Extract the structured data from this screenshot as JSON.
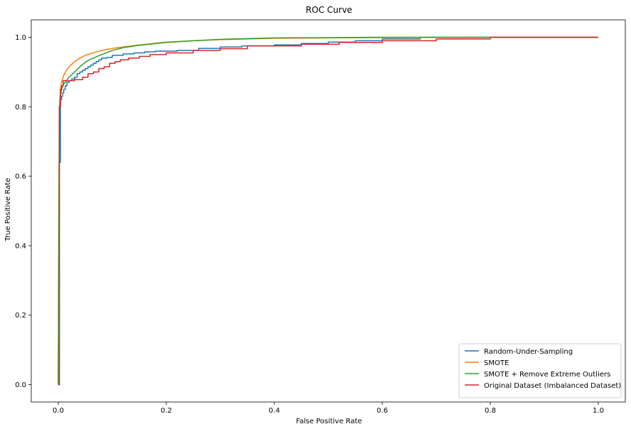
{
  "chart_data": {
    "type": "line",
    "title": "ROC Curve",
    "xlabel": "False Positive Rate",
    "ylabel": "True Positive Rate",
    "xlim": [
      -0.05,
      1.05
    ],
    "ylim": [
      -0.05,
      1.05
    ],
    "xticks": [
      0.0,
      0.2,
      0.4,
      0.6,
      0.8,
      1.0
    ],
    "yticks": [
      0.0,
      0.2,
      0.4,
      0.6,
      0.8,
      1.0
    ],
    "xtick_labels": [
      "0.0",
      "0.2",
      "0.4",
      "0.6",
      "0.8",
      "1.0"
    ],
    "ytick_labels": [
      "0.0",
      "0.2",
      "0.4",
      "0.6",
      "0.8",
      "1.0"
    ],
    "grid": false,
    "legend_position": "lower-right",
    "series": [
      {
        "name": "Random-Under-Sampling",
        "color": "#1f77b4",
        "step": true,
        "x": [
          0.0,
          0.002,
          0.002,
          0.004,
          0.004,
          0.006,
          0.006,
          0.008,
          0.008,
          0.01,
          0.01,
          0.013,
          0.013,
          0.016,
          0.016,
          0.02,
          0.02,
          0.025,
          0.025,
          0.03,
          0.03,
          0.035,
          0.035,
          0.04,
          0.04,
          0.045,
          0.045,
          0.05,
          0.05,
          0.055,
          0.055,
          0.06,
          0.06,
          0.065,
          0.065,
          0.07,
          0.07,
          0.075,
          0.075,
          0.08,
          0.08,
          0.09,
          0.09,
          0.1,
          0.1,
          0.12,
          0.12,
          0.14,
          0.14,
          0.16,
          0.16,
          0.18,
          0.18,
          0.22,
          0.22,
          0.26,
          0.26,
          0.3,
          0.3,
          0.34,
          0.34,
          0.4,
          0.4,
          0.45,
          0.45,
          0.5,
          0.5,
          0.55,
          0.55,
          0.6,
          0.6,
          0.67,
          0.67,
          0.9,
          0.9,
          1.0
        ],
        "y": [
          0.0,
          0.0,
          0.64,
          0.64,
          0.82,
          0.82,
          0.83,
          0.83,
          0.84,
          0.84,
          0.85,
          0.85,
          0.86,
          0.86,
          0.87,
          0.87,
          0.875,
          0.875,
          0.88,
          0.88,
          0.885,
          0.885,
          0.895,
          0.895,
          0.9,
          0.9,
          0.905,
          0.905,
          0.91,
          0.91,
          0.915,
          0.915,
          0.92,
          0.92,
          0.925,
          0.925,
          0.93,
          0.93,
          0.935,
          0.935,
          0.94,
          0.94,
          0.942,
          0.942,
          0.948,
          0.948,
          0.952,
          0.952,
          0.955,
          0.955,
          0.958,
          0.958,
          0.96,
          0.96,
          0.962,
          0.962,
          0.968,
          0.968,
          0.972,
          0.972,
          0.975,
          0.975,
          0.978,
          0.978,
          0.982,
          0.982,
          0.986,
          0.986,
          0.99,
          0.99,
          0.995,
          0.995,
          1.0,
          1.0,
          1.0,
          1.0
        ]
      },
      {
        "name": "SMOTE",
        "color": "#ff7f0e",
        "step": false,
        "x": [
          0.0,
          0.001,
          0.002,
          0.004,
          0.006,
          0.01,
          0.015,
          0.02,
          0.03,
          0.04,
          0.05,
          0.06,
          0.08,
          0.1,
          0.12,
          0.15,
          0.2,
          0.25,
          0.3,
          0.4,
          0.5,
          0.6,
          0.8,
          1.0
        ],
        "y": [
          0.0,
          0.5,
          0.8,
          0.85,
          0.87,
          0.89,
          0.905,
          0.915,
          0.93,
          0.94,
          0.948,
          0.953,
          0.962,
          0.968,
          0.972,
          0.978,
          0.986,
          0.99,
          0.993,
          0.997,
          0.998,
          0.999,
          1.0,
          1.0
        ]
      },
      {
        "name": "SMOTE + Remove Extreme Outliers",
        "color": "#2ca02c",
        "step": false,
        "x": [
          0.0,
          0.001,
          0.002,
          0.004,
          0.006,
          0.01,
          0.015,
          0.02,
          0.03,
          0.04,
          0.05,
          0.06,
          0.08,
          0.1,
          0.12,
          0.15,
          0.2,
          0.25,
          0.3,
          0.4,
          0.5,
          0.6,
          0.8,
          1.0
        ],
        "y": [
          0.0,
          0.45,
          0.75,
          0.83,
          0.85,
          0.865,
          0.875,
          0.885,
          0.9,
          0.915,
          0.928,
          0.937,
          0.95,
          0.962,
          0.97,
          0.977,
          0.985,
          0.99,
          0.994,
          0.998,
          0.999,
          1.0,
          1.0,
          1.0
        ]
      },
      {
        "name": "Original Dataset (Imbalanced Dataset)",
        "color": "#d62728",
        "step": true,
        "x": [
          0.0,
          0.002,
          0.002,
          0.004,
          0.004,
          0.006,
          0.006,
          0.009,
          0.009,
          0.03,
          0.03,
          0.045,
          0.045,
          0.055,
          0.055,
          0.065,
          0.065,
          0.075,
          0.075,
          0.085,
          0.085,
          0.095,
          0.095,
          0.105,
          0.105,
          0.115,
          0.115,
          0.13,
          0.13,
          0.15,
          0.15,
          0.17,
          0.17,
          0.2,
          0.2,
          0.25,
          0.25,
          0.3,
          0.3,
          0.35,
          0.35,
          0.45,
          0.45,
          0.52,
          0.52,
          0.6,
          0.6,
          0.7,
          0.7,
          0.8,
          0.8,
          1.0
        ],
        "y": [
          0.0,
          0.0,
          0.8,
          0.8,
          0.85,
          0.85,
          0.86,
          0.86,
          0.875,
          0.875,
          0.878,
          0.878,
          0.885,
          0.885,
          0.895,
          0.895,
          0.9,
          0.9,
          0.91,
          0.91,
          0.915,
          0.915,
          0.925,
          0.925,
          0.93,
          0.93,
          0.935,
          0.935,
          0.94,
          0.94,
          0.945,
          0.945,
          0.95,
          0.95,
          0.955,
          0.955,
          0.962,
          0.962,
          0.967,
          0.967,
          0.975,
          0.975,
          0.98,
          0.98,
          0.985,
          0.985,
          0.99,
          0.99,
          0.995,
          0.995,
          1.0,
          1.0
        ]
      }
    ]
  }
}
